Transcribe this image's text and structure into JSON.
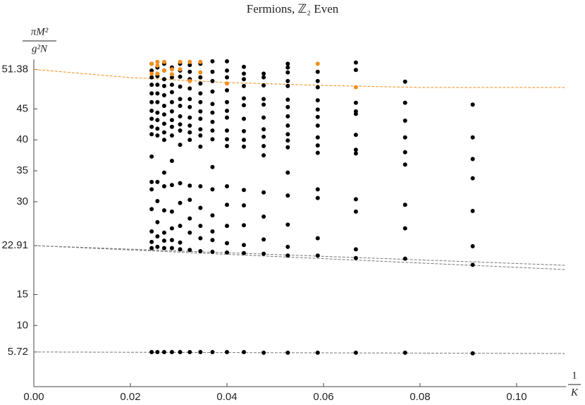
{
  "chart_data": {
    "type": "scatter",
    "title": "Fermions, ℤ₂ Even",
    "ylabel": {
      "numerator": "πM²",
      "denominator": "g²N"
    },
    "xlabel": {
      "numerator": "1",
      "denominator": "K"
    },
    "xlim": [
      0,
      0.11
    ],
    "ylim": [
      0,
      53
    ],
    "xticks": [
      {
        "value": 0,
        "label": "0.00"
      },
      0.02,
      0.04,
      0.06,
      0.08,
      {
        "value": 0.1,
        "label": "0.10"
      }
    ],
    "yticks": [
      5.72,
      10,
      15,
      22.91,
      30,
      35,
      40,
      45,
      51.38
    ],
    "grid": false,
    "series": [
      {
        "style": "dashed",
        "color": "#f28e1c",
        "x": [
          0,
          0.02,
          0.04,
          0.06,
          0.08,
          0.11
        ],
        "values": [
          51.38,
          50.06,
          49.26,
          48.8,
          48.46,
          48.46
        ]
      },
      {
        "style": "dashed",
        "color": "#777777",
        "x": [
          0,
          0.11
        ],
        "values": [
          22.91,
          19.73
        ]
      },
      {
        "style": "dashed",
        "color": "#777777",
        "x": [
          0,
          0.11
        ],
        "values": [
          22.91,
          19.04
        ]
      },
      {
        "style": "dashed",
        "color": "#777777",
        "x": [
          0,
          0.11
        ],
        "values": [
          5.72,
          5.47
        ]
      },
      {
        "style": "points",
        "color": "#000000",
        "x": [
          0.0244,
          0.0244,
          0.0244,
          0.0244,
          0.0244,
          0.0244,
          0.0244,
          0.0244,
          0.0244,
          0.0244,
          0.0244,
          0.0244,
          0.0244,
          0.0244,
          0.0244,
          0.0244,
          0.0244,
          0.0244,
          0.0256,
          0.0256,
          0.0256,
          0.0256,
          0.0256,
          0.0256,
          0.0256,
          0.0256,
          0.0256,
          0.0256,
          0.0256,
          0.0256,
          0.0256,
          0.0256,
          0.0256,
          0.027,
          0.027,
          0.027,
          0.027,
          0.027,
          0.027,
          0.027,
          0.027,
          0.027,
          0.027,
          0.027,
          0.027,
          0.027,
          0.027,
          0.027,
          0.027,
          0.027,
          0.0286,
          0.0286,
          0.0286,
          0.0286,
          0.0286,
          0.0286,
          0.0286,
          0.0286,
          0.0286,
          0.0286,
          0.0286,
          0.0286,
          0.0286,
          0.0286,
          0.0286,
          0.0286,
          0.0303,
          0.0303,
          0.0303,
          0.0303,
          0.0303,
          0.0303,
          0.0303,
          0.0303,
          0.0303,
          0.0303,
          0.0303,
          0.0303,
          0.0303,
          0.0303,
          0.0303,
          0.0303,
          0.0323,
          0.0323,
          0.0323,
          0.0323,
          0.0323,
          0.0323,
          0.0323,
          0.0323,
          0.0323,
          0.0323,
          0.0323,
          0.0323,
          0.0323,
          0.0323,
          0.0323,
          0.0323,
          0.0345,
          0.0345,
          0.0345,
          0.0345,
          0.0345,
          0.0345,
          0.0345,
          0.0345,
          0.0345,
          0.0345,
          0.0345,
          0.0345,
          0.0345,
          0.0345,
          0.0345,
          0.0345,
          0.037,
          0.037,
          0.037,
          0.037,
          0.037,
          0.037,
          0.037,
          0.037,
          0.037,
          0.037,
          0.037,
          0.037,
          0.037,
          0.037,
          0.037,
          0.037,
          0.04,
          0.04,
          0.04,
          0.04,
          0.04,
          0.04,
          0.04,
          0.04,
          0.04,
          0.04,
          0.04,
          0.04,
          0.04,
          0.04,
          0.04,
          0.04,
          0.0435,
          0.0435,
          0.0435,
          0.0435,
          0.0435,
          0.0435,
          0.0435,
          0.0435,
          0.0435,
          0.0435,
          0.0435,
          0.0435,
          0.0435,
          0.0435,
          0.0435,
          0.0435,
          0.0476,
          0.0476,
          0.0476,
          0.0476,
          0.0476,
          0.0476,
          0.0476,
          0.0476,
          0.0476,
          0.0476,
          0.0476,
          0.0476,
          0.0476,
          0.0476,
          0.0476,
          0.0526,
          0.0526,
          0.0526,
          0.0526,
          0.0526,
          0.0526,
          0.0526,
          0.0526,
          0.0526,
          0.0526,
          0.0526,
          0.0526,
          0.0526,
          0.0526,
          0.0526,
          0.0526,
          0.0526,
          0.0526,
          0.0588,
          0.0588,
          0.0588,
          0.0588,
          0.0588,
          0.0588,
          0.0588,
          0.0588,
          0.0588,
          0.0588,
          0.0588,
          0.0588,
          0.0588,
          0.0588,
          0.0588,
          0.0667,
          0.0667,
          0.0667,
          0.0667,
          0.0667,
          0.0667,
          0.0667,
          0.0667,
          0.0667,
          0.0667,
          0.0667,
          0.0667,
          0.0667,
          0.0769,
          0.0769,
          0.0769,
          0.0769,
          0.0769,
          0.0769,
          0.0769,
          0.0769,
          0.0769,
          0.0769,
          0.0909,
          0.0909,
          0.0909,
          0.0909,
          0.0909,
          0.0909,
          0.0909,
          0.0909
        ],
        "values": [
          52.3,
          51.2,
          50.1,
          48.9,
          47.5,
          46.1,
          44.7,
          43.4,
          42.1,
          40.9,
          37.3,
          33.2,
          32.0,
          28.8,
          25.2,
          23.5,
          22.5,
          5.7,
          51.7,
          50.3,
          48.9,
          47.5,
          46.1,
          44.4,
          43.2,
          41.8,
          40.7,
          33.2,
          30.1,
          26.7,
          24.4,
          22.7,
          5.7,
          52.3,
          51.2,
          49.8,
          48.7,
          47.2,
          45.5,
          44.1,
          42.6,
          41.2,
          40.0,
          34.7,
          32.5,
          28.6,
          25.0,
          23.7,
          22.5,
          5.7,
          51.7,
          50.1,
          48.9,
          47.7,
          46.1,
          44.6,
          43.2,
          42.1,
          40.7,
          36.6,
          32.7,
          28.4,
          25.7,
          23.8,
          22.5,
          5.7,
          52.3,
          51.2,
          50.2,
          48.6,
          46.6,
          45.5,
          43.8,
          42.5,
          41.5,
          39.2,
          33.0,
          29.8,
          26.1,
          23.4,
          22.3,
          5.7,
          52.1,
          51.0,
          49.8,
          48.3,
          46.6,
          45.3,
          43.6,
          42.3,
          41.2,
          40.0,
          32.6,
          30.3,
          27.3,
          25.0,
          22.2,
          5.7,
          52.3,
          50.1,
          49.1,
          47.5,
          46.1,
          44.6,
          43.4,
          41.7,
          40.7,
          38.9,
          32.5,
          29.0,
          26.1,
          24.1,
          22.0,
          5.7,
          52.7,
          51.0,
          49.5,
          47.8,
          45.8,
          44.4,
          42.9,
          41.5,
          40.1,
          35.6,
          32.0,
          27.8,
          25.2,
          23.8,
          21.9,
          5.7,
          52.7,
          51.2,
          50.1,
          48.0,
          46.1,
          44.7,
          43.6,
          41.5,
          40.1,
          39.0,
          32.5,
          29.5,
          26.1,
          23.3,
          21.8,
          5.7,
          51.8,
          50.7,
          49.8,
          48.7,
          46.7,
          45.6,
          43.4,
          41.4,
          40.0,
          38.9,
          31.9,
          29.4,
          26.2,
          23.0,
          21.7,
          5.7,
          50.7,
          50.1,
          48.8,
          46.6,
          45.7,
          43.6,
          41.7,
          40.5,
          39.0,
          37.5,
          31.5,
          27.6,
          23.9,
          21.6,
          5.6,
          52.3,
          51.7,
          50.9,
          49.5,
          48.7,
          46.5,
          45.3,
          43.8,
          42.3,
          40.9,
          39.9,
          38.8,
          34.7,
          31.0,
          26.3,
          22.7,
          21.3,
          5.6,
          51.0,
          49.5,
          48.5,
          46.4,
          44.9,
          43.7,
          42.3,
          40.4,
          39.1,
          37.9,
          32.0,
          30.6,
          24.1,
          21.3,
          5.6,
          52.5,
          51.3,
          46.0,
          44.6,
          44.2,
          40.8,
          38.4,
          37.8,
          30.4,
          28.4,
          22.3,
          20.9,
          5.6,
          49.4,
          46.0,
          43.1,
          40.4,
          38.0,
          36.0,
          29.5,
          25.7,
          20.8,
          5.6,
          45.7,
          40.4,
          36.9,
          33.8,
          28.5,
          22.8,
          19.8,
          5.5
        ]
      },
      {
        "style": "points",
        "color": "#f28e1c",
        "x": [
          0.0244,
          0.0244,
          0.0256,
          0.0256,
          0.0256,
          0.027,
          0.027,
          0.0286,
          0.0286,
          0.0303,
          0.0303,
          0.0323,
          0.0323,
          0.0345,
          0.0345,
          0.04,
          0.0588,
          0.0667
        ],
        "values": [
          52.3,
          50.7,
          52.6,
          52.0,
          50.7,
          52.6,
          51.2,
          51.4,
          50.6,
          52.6,
          51.4,
          52.6,
          49.5,
          52.6,
          50.9,
          49.1,
          52.3,
          48.5
        ]
      }
    ]
  }
}
